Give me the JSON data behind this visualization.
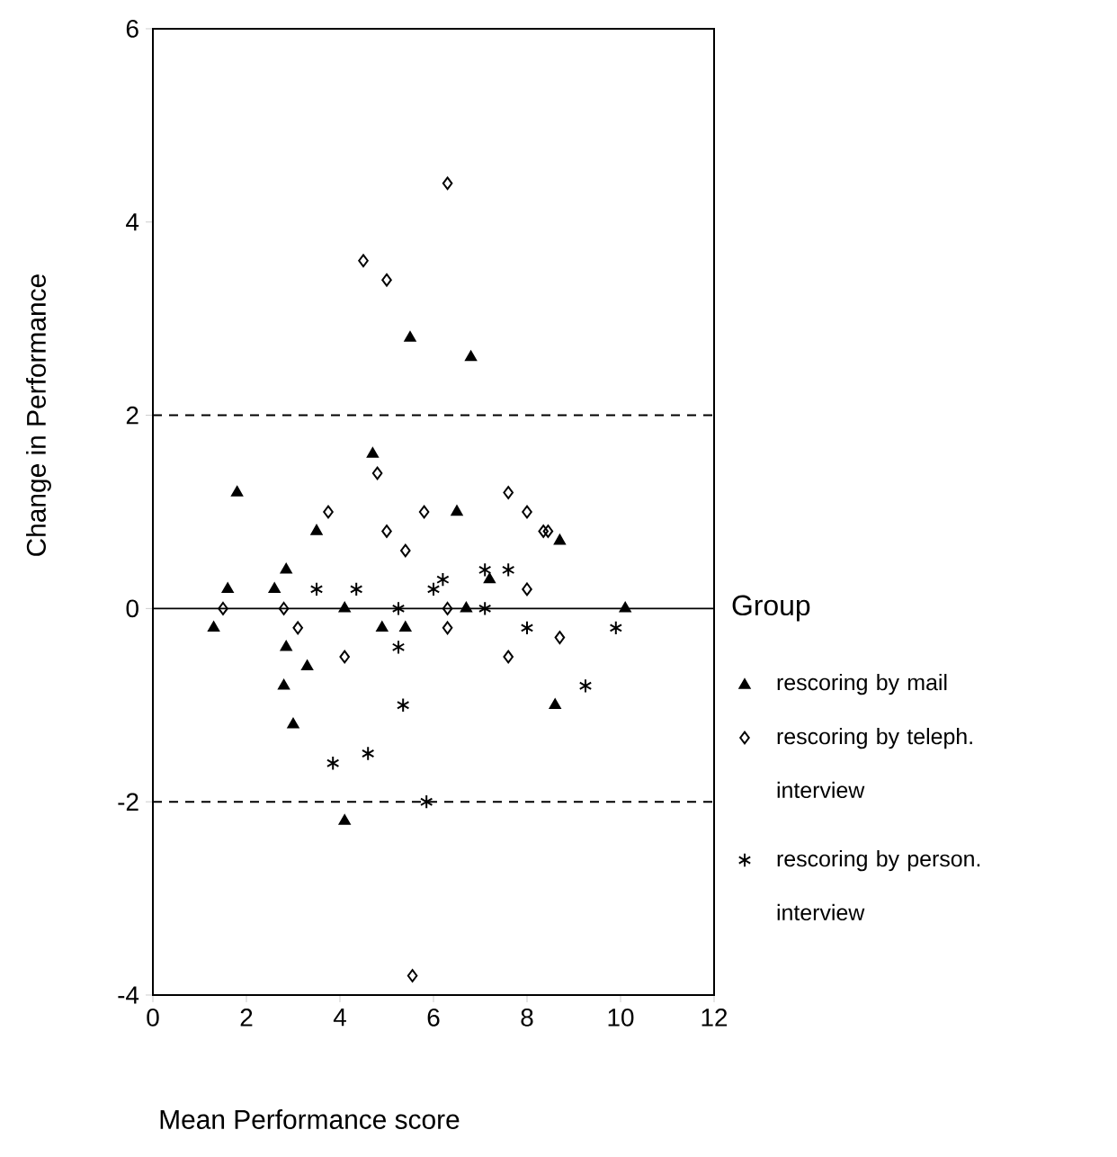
{
  "chart_data": {
    "type": "scatter",
    "xlabel": "Mean Performance score",
    "ylabel": "Change in Performance",
    "legend_title": "Group",
    "legend": "right",
    "xlim": [
      0,
      12
    ],
    "xticks": [
      0,
      2,
      4,
      6,
      8,
      10,
      12
    ],
    "ylim": [
      -4,
      6
    ],
    "yticks": [
      -4,
      -2,
      0,
      2,
      4,
      6
    ],
    "grid": false,
    "ref_lines": [
      {
        "axis": "y",
        "value": 2,
        "line_style": "dashed"
      },
      {
        "axis": "y",
        "value": 0,
        "line_style": "solid"
      },
      {
        "axis": "y",
        "value": -2,
        "line_style": "dashed"
      }
    ],
    "series": [
      {
        "name": "rescoring by mail",
        "color": "#000000",
        "marker": "triangle",
        "x": [
          1.8,
          5.5,
          6.8,
          6.5,
          3.5,
          8.7,
          4.7,
          1.6,
          1.3,
          2.6,
          2.85,
          2.85,
          3.3,
          3.0,
          4.1,
          4.9,
          5.4,
          6.7,
          7.2,
          8.6,
          10.1,
          2.8,
          4.1
        ],
        "values": [
          1.2,
          2.8,
          2.6,
          1.0,
          0.8,
          0.7,
          1.6,
          0.2,
          -0.2,
          0.2,
          0.4,
          -0.4,
          -0.6,
          -1.2,
          -2.2,
          -0.2,
          -0.2,
          0,
          0.3,
          -1.0,
          0,
          -0.8,
          0
        ]
      },
      {
        "name": "rescoring by teleph. interview",
        "color": "#000000",
        "marker": "diamond",
        "x": [
          6.3,
          4.5,
          5.0,
          4.8,
          3.75,
          5.8,
          7.6,
          8.0,
          8.35,
          8.45,
          5.0,
          5.4,
          1.5,
          2.8,
          3.1,
          4.1,
          6.3,
          6.3,
          7.6,
          8.0,
          8.7,
          5.55
        ],
        "values": [
          4.4,
          3.6,
          3.4,
          1.4,
          1.0,
          1.0,
          1.2,
          1.0,
          0.8,
          0.8,
          0.8,
          0.6,
          0,
          0,
          -0.2,
          -0.5,
          0,
          -0.2,
          -0.5,
          0.2,
          -0.3,
          -3.8
        ]
      },
      {
        "name": "rescoring by person. interview",
        "color": "#000000",
        "marker": "cross",
        "x": [
          3.5,
          4.35,
          5.25,
          5.25,
          5.35,
          3.85,
          4.6,
          5.85,
          6.0,
          6.2,
          7.1,
          7.1,
          7.6,
          8.0,
          9.25,
          9.9
        ],
        "values": [
          0.2,
          0.2,
          0,
          -0.4,
          -1.0,
          -1.6,
          -1.5,
          -2.0,
          0.2,
          0.3,
          0.4,
          0,
          0.4,
          -0.2,
          -0.8,
          -0.2
        ]
      }
    ]
  }
}
